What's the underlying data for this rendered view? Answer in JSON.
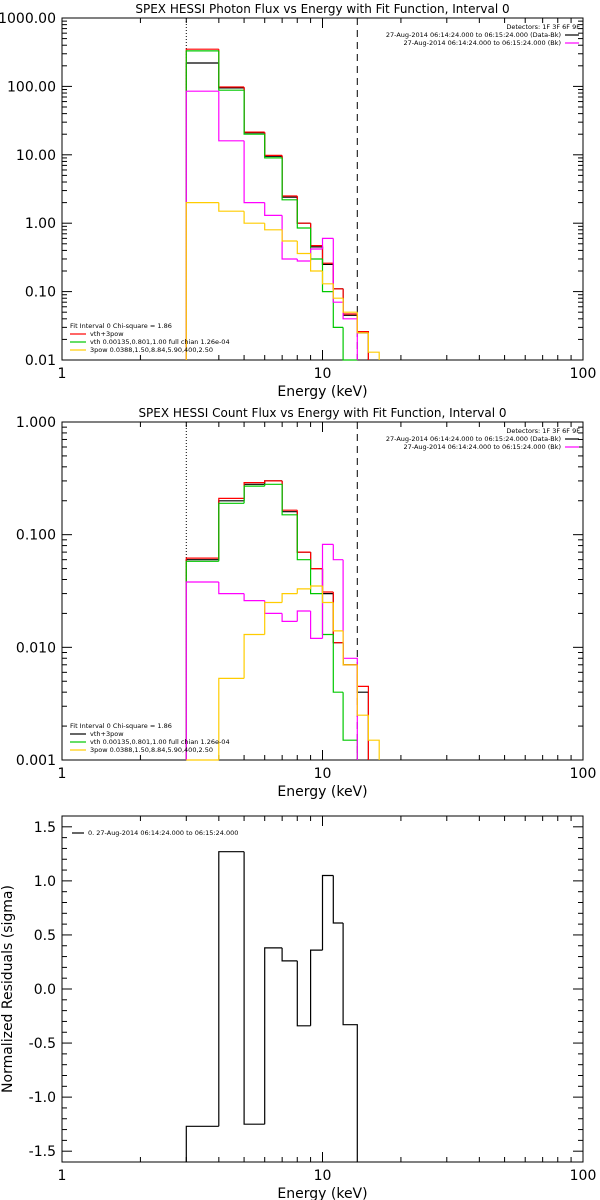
{
  "chart_data": [
    {
      "type": "line",
      "title": "SPEX HESSI Photon Flux vs Energy with Fit Function, Interval 0",
      "xlabel": "Energy (keV)",
      "ylabel": "",
      "xscale": "log",
      "yscale": "log",
      "xlim": [
        1,
        100
      ],
      "ylim": [
        0.01,
        1000
      ],
      "xticks": [
        {
          "v": 1,
          "label": "1"
        },
        {
          "v": 10,
          "label": "10"
        },
        {
          "v": 100,
          "label": "100"
        }
      ],
      "yticks": [
        {
          "v": 0.01,
          "label": "0.01"
        },
        {
          "v": 0.1,
          "label": "0.10"
        },
        {
          "v": 1,
          "label": "1.00"
        },
        {
          "v": 10,
          "label": "10.00"
        },
        {
          "v": 100,
          "label": "100.00"
        },
        {
          "v": 1000,
          "label": "1000.00"
        }
      ],
      "vlines": [
        {
          "x": 3.0,
          "style": "dotted"
        },
        {
          "x": 13.6,
          "style": "dashed"
        }
      ],
      "bin_edges": [
        3.0,
        4.0,
        5.0,
        6.0,
        7.0,
        8.0,
        9.0,
        10.0,
        11.0,
        12.0,
        13.6,
        15.0,
        16.5
      ],
      "series": [
        {
          "color": "#000000",
          "values": [
            220,
            95,
            21,
            9.5,
            2.4,
            1.0,
            0.45,
            0.25,
            0.11,
            0.045,
            0.025,
            null
          ]
        },
        {
          "color": "#ff0000",
          "values": [
            350,
            98,
            21.5,
            9.8,
            2.5,
            1.0,
            0.47,
            0.26,
            0.11,
            0.047,
            0.026,
            null
          ]
        },
        {
          "color": "#00c800",
          "values": [
            330,
            88,
            20,
            9.0,
            2.2,
            0.85,
            0.3,
            0.1,
            0.03,
            0.008,
            null,
            null
          ]
        },
        {
          "color": "#ff00ff",
          "values": [
            85,
            16,
            2.0,
            1.3,
            0.3,
            0.28,
            0.42,
            0.6,
            0.07,
            0.04,
            null,
            null
          ]
        },
        {
          "color": "#ffcc00",
          "values": [
            2.0,
            1.5,
            1.0,
            0.8,
            0.55,
            0.36,
            0.2,
            0.13,
            0.08,
            0.05,
            0.025,
            0.013
          ]
        }
      ],
      "legend": {
        "top_right": [
          "Detectors: 1F 3F 6F 9F",
          "27-Aug-2014 06:14:24.000 to 06:15:24.000 (Data-Bk)",
          "27-Aug-2014 06:14:24.000 to 06:15:24.000 (Bk)"
        ],
        "top_right_colors": [
          "#000000",
          "#ff00ff"
        ],
        "bottom_left": [
          "Fit Interval 0   Chi-square = 1.86",
          "vth+3pow",
          "vth 0.00135,0.801,1.00   full chian 1.26e-04",
          "3pow 0.0388,1.50,8.84,5.90,400,2.50"
        ],
        "bottom_left_colors": [
          "#ff0000",
          "#00c800",
          "#ffcc00"
        ]
      }
    },
    {
      "type": "line",
      "title": "SPEX HESSI Count Flux vs Energy with Fit Function, Interval 0",
      "xlabel": "Energy (keV)",
      "ylabel": "",
      "xscale": "log",
      "yscale": "log",
      "xlim": [
        1,
        100
      ],
      "ylim": [
        0.001,
        1
      ],
      "xticks": [
        {
          "v": 1,
          "label": "1"
        },
        {
          "v": 10,
          "label": "10"
        },
        {
          "v": 100,
          "label": "100"
        }
      ],
      "yticks": [
        {
          "v": 0.001,
          "label": "0.001"
        },
        {
          "v": 0.01,
          "label": "0.010"
        },
        {
          "v": 0.1,
          "label": "0.100"
        },
        {
          "v": 1,
          "label": "1.000"
        }
      ],
      "vlines": [
        {
          "x": 3.0,
          "style": "dotted"
        },
        {
          "x": 13.6,
          "style": "dashed"
        }
      ],
      "bin_edges": [
        3.0,
        4.0,
        5.0,
        6.0,
        7.0,
        8.0,
        9.0,
        10.0,
        11.0,
        12.0,
        13.6,
        15.0,
        16.5
      ],
      "series": [
        {
          "color": "#000000",
          "values": [
            0.06,
            0.2,
            0.28,
            0.3,
            0.16,
            0.07,
            0.05,
            0.03,
            0.011,
            0.007,
            0.004,
            null
          ]
        },
        {
          "color": "#ff0000",
          "values": [
            0.062,
            0.21,
            0.29,
            0.3,
            0.165,
            0.07,
            0.05,
            0.031,
            0.011,
            0.007,
            0.0045,
            null
          ]
        },
        {
          "color": "#00c800",
          "values": [
            0.058,
            0.19,
            0.27,
            0.28,
            0.15,
            0.06,
            0.03,
            0.013,
            0.004,
            0.0015,
            null,
            null
          ]
        },
        {
          "color": "#ff00ff",
          "values": [
            0.038,
            0.03,
            0.026,
            0.02,
            0.017,
            0.021,
            0.012,
            0.082,
            0.06,
            0.008,
            null,
            null
          ]
        },
        {
          "color": "#ffcc00",
          "values": [
            0.001,
            0.0053,
            0.013,
            0.025,
            0.03,
            0.033,
            0.035,
            0.025,
            0.014,
            0.007,
            0.0025,
            0.0015
          ]
        }
      ],
      "legend": {
        "top_right": [
          "Detectors: 1F 3F 6F 9F",
          "27-Aug-2014 06:14:24.000 to 06:15:24.000 (Data-Bk)",
          "27-Aug-2014 06:14:24.000 to 06:15:24.000 (Bk)"
        ],
        "top_right_colors": [
          "#000000",
          "#ff00ff"
        ],
        "bottom_left": [
          "Fit Interval 0   Chi-square = 1.86",
          "vth+3pow",
          "vth 0.00135,0.801,1.00   full chian 1.26e-04",
          "3pow 0.0388,1.50,8.84,5.90,400,2.50"
        ],
        "bottom_left_colors": [
          "#000000",
          "#00c800",
          "#ffcc00"
        ]
      }
    },
    {
      "type": "line",
      "title": "",
      "xlabel": "Energy (keV)",
      "ylabel": "Normalized Residuals (sigma)",
      "xscale": "log",
      "yscale": "linear",
      "xlim": [
        1,
        100
      ],
      "ylim": [
        -1.6,
        1.6
      ],
      "xticks": [
        {
          "v": 1,
          "label": "1"
        },
        {
          "v": 10,
          "label": "10"
        },
        {
          "v": 100,
          "label": "100"
        }
      ],
      "yticks": [
        {
          "v": -1.5,
          "label": "-1.5"
        },
        {
          "v": -1.0,
          "label": "-1.0"
        },
        {
          "v": -0.5,
          "label": "-0.5"
        },
        {
          "v": 0,
          "label": "0.0"
        },
        {
          "v": 0.5,
          "label": "0.5"
        },
        {
          "v": 1.0,
          "label": "1.0"
        },
        {
          "v": 1.5,
          "label": "1.5"
        }
      ],
      "vlines": [],
      "bin_edges": [
        3.0,
        4.0,
        5.0,
        6.0,
        7.0,
        8.0,
        9.0,
        10.0,
        11.0,
        12.0,
        13.6
      ],
      "series": [
        {
          "color": "#000000",
          "values": [
            -1.27,
            1.27,
            -1.25,
            0.38,
            0.26,
            -0.34,
            0.36,
            1.05,
            0.61,
            -0.33
          ]
        }
      ],
      "legend": {
        "top_left": [
          "0. 27-Aug-2014 06:14:24.000 to 06:15:24.000"
        ],
        "top_left_colors": [
          "#000000"
        ]
      }
    }
  ]
}
